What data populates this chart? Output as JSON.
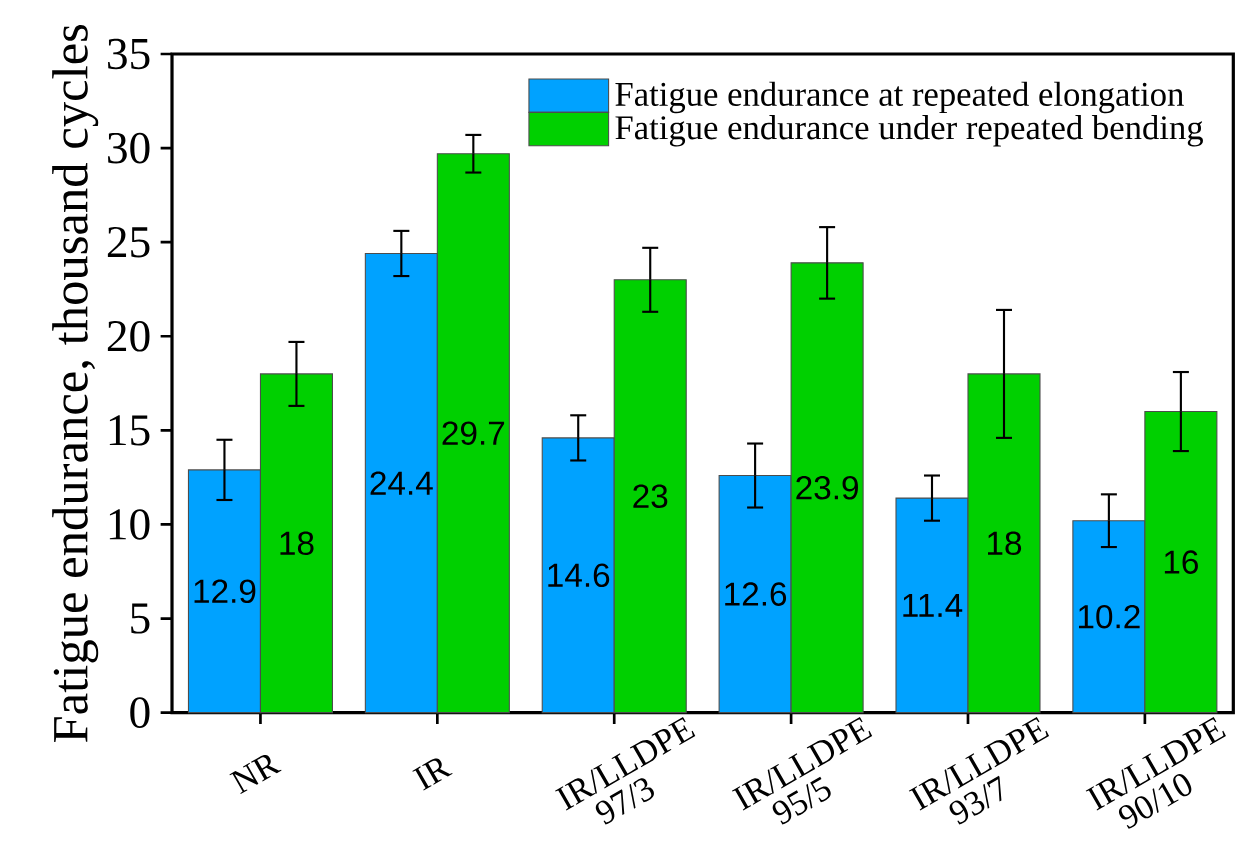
{
  "chart_data": {
    "type": "bar",
    "ylabel": "Fatigue endurance, thousand cycles",
    "categories": [
      "NR",
      "IR",
      "IR/LLDPE 97/3",
      "IR/LLDPE 95/5",
      "IR/LLDPE 93/7",
      "IR/LLDPE 90/10"
    ],
    "series": [
      {
        "name": "Fatigue endurance at repeated elongation",
        "color": "#00a2ff",
        "values": [
          12.9,
          24.4,
          14.6,
          12.6,
          11.4,
          10.2
        ],
        "errors": [
          1.6,
          1.2,
          1.2,
          1.7,
          1.2,
          1.4
        ]
      },
      {
        "name": "Fatigue endurance under repeated bending",
        "color": "#00d000",
        "values": [
          18,
          29.7,
          23,
          23.9,
          18,
          16
        ],
        "errors": [
          1.7,
          1.0,
          1.7,
          1.9,
          3.4,
          2.1
        ]
      }
    ],
    "ylim": [
      0,
      35
    ],
    "yticks": [
      0,
      5,
      10,
      15,
      20,
      25,
      30,
      35
    ],
    "data_labels": true,
    "legend": "top right",
    "grid": false
  }
}
